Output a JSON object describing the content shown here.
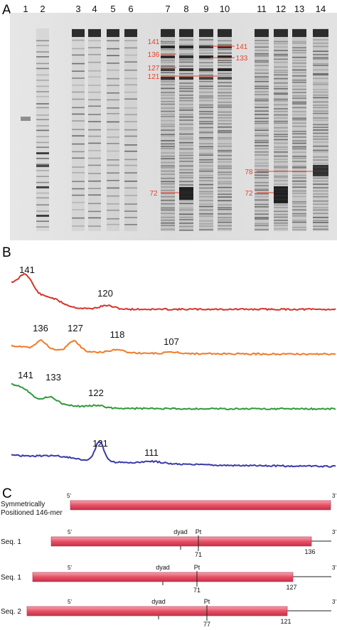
{
  "panels": {
    "a": {
      "letter": "A",
      "lane_numbers": [
        "1",
        "2",
        "3",
        "4",
        "5",
        "6",
        "7",
        "8",
        "9",
        "10",
        "11",
        "12",
        "13",
        "14"
      ],
      "markers": [
        {
          "label": "141",
          "side": "left"
        },
        {
          "label": "136",
          "side": "left"
        },
        {
          "label": "127",
          "side": "left"
        },
        {
          "label": "121",
          "side": "left"
        },
        {
          "label": "141",
          "side": "right"
        },
        {
          "label": "133",
          "side": "right"
        },
        {
          "label": "72",
          "side": "left"
        },
        {
          "label": "78",
          "side": "left"
        },
        {
          "label": "72",
          "side": "left"
        }
      ],
      "marker_color": "#e8402a"
    },
    "b": {
      "letter": "B",
      "traces": [
        {
          "color": "#d8322a",
          "peaks": [
            "141",
            "120"
          ]
        },
        {
          "color": "#f07a2a",
          "peaks": [
            "136",
            "127",
            "118",
            "107"
          ]
        },
        {
          "color": "#2e9a3a",
          "peaks": [
            "141",
            "133",
            "122"
          ]
        },
        {
          "color": "#3a3aa8",
          "peaks": [
            "121",
            "111"
          ]
        }
      ]
    },
    "c": {
      "letter": "C",
      "rows": [
        {
          "label_lines": [
            "Symmetrically",
            "Positioned 146-mer"
          ],
          "five": "5'",
          "three": "3'",
          "dyad": "",
          "pt": "",
          "site": "",
          "end": ""
        },
        {
          "label_lines": [
            "Seq. 1"
          ],
          "five": "5'",
          "three": "3'",
          "dyad": "dyad",
          "pt": "Pt",
          "site": "71",
          "end": "136"
        },
        {
          "label_lines": [
            "Seq. 1"
          ],
          "five": "5'",
          "three": "3'",
          "dyad": "dyad",
          "pt": "Pt",
          "site": "71",
          "end": "127"
        },
        {
          "label_lines": [
            "Seq. 2"
          ],
          "five": "5'",
          "three": "3'",
          "dyad": "dyad",
          "pt": "Pt",
          "site": "77",
          "end": "121"
        }
      ],
      "bar_color": "#e85a6a"
    }
  }
}
